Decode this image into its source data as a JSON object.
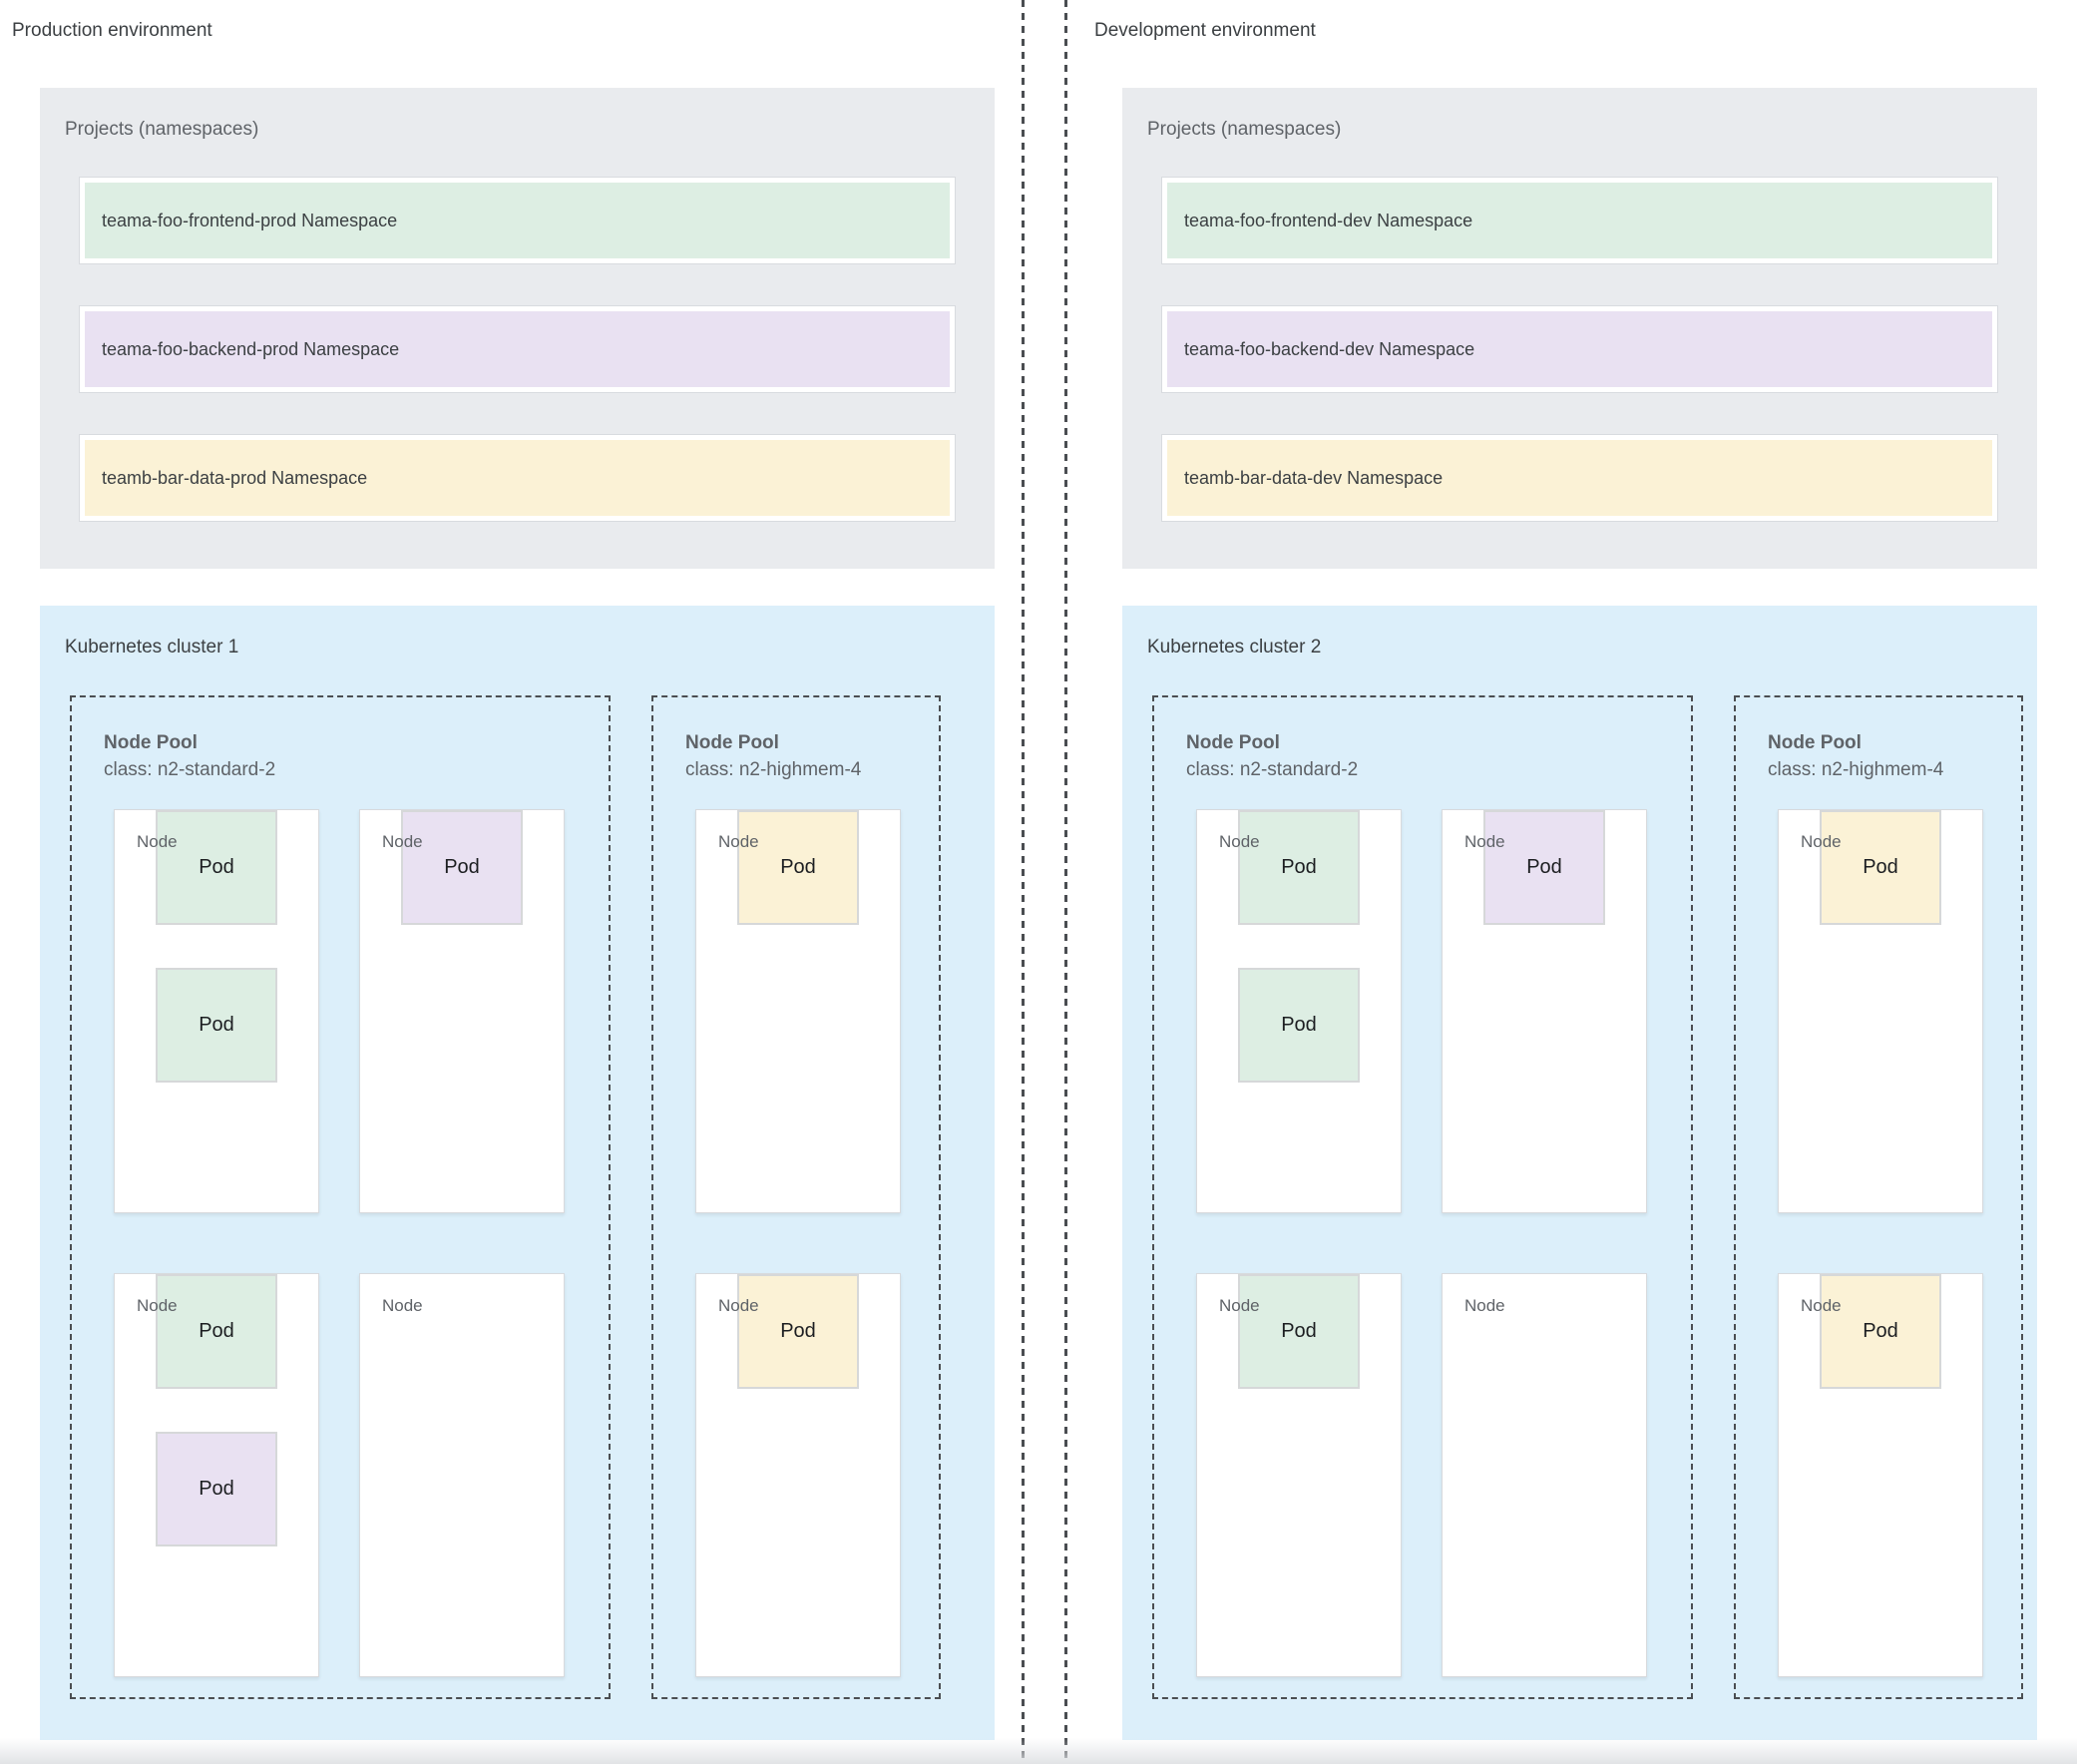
{
  "colors": {
    "green": "#ddeee3",
    "purple": "#e9e1f2",
    "yellow": "#fbf2d6",
    "cluster_bg": "#dceffa",
    "projects_bg": "#e9ebee",
    "node_bg": "#ffffff",
    "text_dark": "#3c4043",
    "text_gray": "#5f6368"
  },
  "panels": [
    {
      "title": "Production environment",
      "projects": {
        "label": "Projects (namespaces)",
        "namespaces": [
          {
            "label": "teama-foo-frontend-prod Namespace",
            "color": "green"
          },
          {
            "label": "teama-foo-backend-prod Namespace",
            "color": "purple"
          },
          {
            "label": "teamb-bar-data-prod Namespace",
            "color": "yellow"
          }
        ]
      },
      "cluster": {
        "label": "Kubernetes cluster 1",
        "node_pools": [
          {
            "name": "Node Pool",
            "class_line": "class: n2-standard-2",
            "columns": 2,
            "nodes": [
              {
                "label": "Node",
                "pods": [
                  {
                    "label": "Pod",
                    "color": "green"
                  },
                  {
                    "label": "Pod",
                    "color": "green"
                  }
                ]
              },
              {
                "label": "Node",
                "pods": [
                  {
                    "label": "Pod",
                    "color": "purple"
                  }
                ]
              },
              {
                "label": "Node",
                "pods": [
                  {
                    "label": "Pod",
                    "color": "green"
                  },
                  {
                    "label": "Pod",
                    "color": "purple"
                  }
                ]
              },
              {
                "label": "Node",
                "pods": []
              }
            ]
          },
          {
            "name": "Node Pool",
            "class_line": "class: n2-highmem-4",
            "columns": 1,
            "nodes": [
              {
                "label": "Node",
                "pods": [
                  {
                    "label": "Pod",
                    "color": "yellow"
                  }
                ]
              },
              {
                "label": "Node",
                "pods": [
                  {
                    "label": "Pod",
                    "color": "yellow"
                  }
                ]
              }
            ]
          }
        ]
      }
    },
    {
      "title": "Development environment",
      "projects": {
        "label": "Projects (namespaces)",
        "namespaces": [
          {
            "label": "teama-foo-frontend-dev Namespace",
            "color": "green"
          },
          {
            "label": "teama-foo-backend-dev Namespace",
            "color": "purple"
          },
          {
            "label": "teamb-bar-data-dev Namespace",
            "color": "yellow"
          }
        ]
      },
      "cluster": {
        "label": "Kubernetes cluster 2",
        "node_pools": [
          {
            "name": "Node Pool",
            "class_line": "class: n2-standard-2",
            "columns": 2,
            "nodes": [
              {
                "label": "Node",
                "pods": [
                  {
                    "label": "Pod",
                    "color": "green"
                  },
                  {
                    "label": "Pod",
                    "color": "green"
                  }
                ]
              },
              {
                "label": "Node",
                "pods": [
                  {
                    "label": "Pod",
                    "color": "purple"
                  }
                ]
              },
              {
                "label": "Node",
                "pods": [
                  {
                    "label": "Pod",
                    "color": "green"
                  }
                ]
              },
              {
                "label": "Node",
                "pods": []
              }
            ]
          },
          {
            "name": "Node Pool",
            "class_line": "class: n2-highmem-4",
            "columns": 1,
            "nodes": [
              {
                "label": "Node",
                "pods": [
                  {
                    "label": "Pod",
                    "color": "yellow"
                  }
                ]
              },
              {
                "label": "Node",
                "pods": [
                  {
                    "label": "Pod",
                    "color": "yellow"
                  }
                ]
              }
            ]
          }
        ]
      }
    }
  ]
}
